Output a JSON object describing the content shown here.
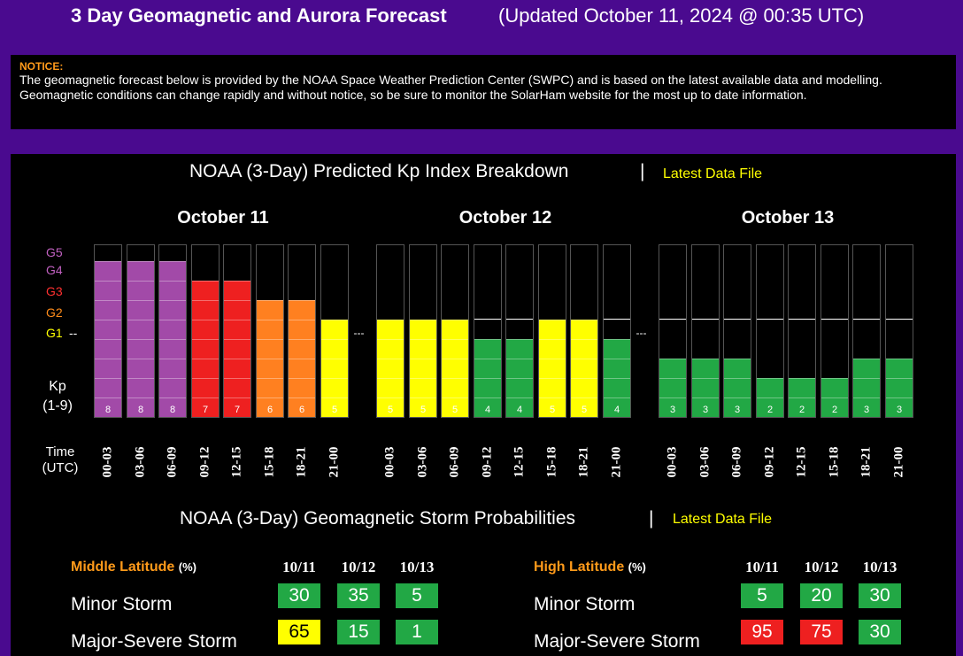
{
  "header": {
    "title": "3 Day Geomagnetic and Aurora Forecast",
    "updated": "(Updated October 11, 2024 @ 00:35 UTC)"
  },
  "notice": {
    "label": "NOTICE:",
    "text": "The geomagnetic forecast below is provided by the NOAA Space Weather Prediction Center (SWPC) and is based on the latest available data and modelling. Geomagnetic conditions can change rapidly and without notice, so be sure to monitor the SolarHam website for the most up to date information."
  },
  "kp_section": {
    "title": "NOAA (3-Day) Predicted Kp Index Breakdown",
    "separator": "|",
    "link": "Latest Data File",
    "g_labels": [
      {
        "text": "G5",
        "color": "#c060c0"
      },
      {
        "text": "G4",
        "color": "#c060c0"
      },
      {
        "text": "G3",
        "color": "#ff3030"
      },
      {
        "text": "G2",
        "color": "#ff8c1a"
      },
      {
        "text": "G1",
        "color": "#ffff00"
      }
    ],
    "g1_tick": "--",
    "kp_label": "Kp",
    "kp_range": "(1-9)",
    "time_label": "Time",
    "time_unit": "(UTC)",
    "day_separator": "---",
    "colors": {
      "8": "#a24aa8",
      "7": "#ee2020",
      "6": "#ff8020",
      "5": "#ffff00",
      "4": "#22a845",
      "3": "#22a845",
      "2": "#22a845"
    },
    "days": [
      {
        "title": "October 11",
        "periods": [
          "00-03",
          "03-06",
          "06-09",
          "09-12",
          "12-15",
          "15-18",
          "18-21",
          "21-00"
        ],
        "kp": [
          8,
          8,
          8,
          7,
          7,
          6,
          6,
          5
        ]
      },
      {
        "title": "October 12",
        "periods": [
          "00-03",
          "03-06",
          "06-09",
          "09-12",
          "12-15",
          "15-18",
          "18-21",
          "21-00"
        ],
        "kp": [
          5,
          5,
          5,
          4,
          4,
          5,
          5,
          4
        ]
      },
      {
        "title": "October 13",
        "periods": [
          "00-03",
          "03-06",
          "06-09",
          "09-12",
          "12-15",
          "15-18",
          "18-21",
          "21-00"
        ],
        "kp": [
          3,
          3,
          3,
          2,
          2,
          2,
          3,
          3
        ]
      }
    ]
  },
  "storm_section": {
    "title": "NOAA (3-Day) Geomagnetic Storm Probabilities",
    "separator": "|",
    "link": "Latest Data File",
    "middle": {
      "label": "Middle Latitude",
      "unit": "(%)",
      "dates": [
        "10/11",
        "10/12",
        "10/13"
      ],
      "rows": [
        {
          "label": "Minor Storm",
          "values": [
            "30",
            "35",
            "5"
          ],
          "colors": [
            "#22a845",
            "#22a845",
            "#22a845"
          ],
          "text_colors": [
            "#fff",
            "#fff",
            "#fff"
          ]
        },
        {
          "label": "Major-Severe Storm",
          "values": [
            "65",
            "15",
            "1"
          ],
          "colors": [
            "#ffff00",
            "#22a845",
            "#22a845"
          ],
          "text_colors": [
            "#000",
            "#fff",
            "#fff"
          ]
        }
      ]
    },
    "high": {
      "label": "High Latitude",
      "unit": "(%)",
      "dates": [
        "10/11",
        "10/12",
        "10/13"
      ],
      "rows": [
        {
          "label": "Minor Storm",
          "values": [
            "5",
            "20",
            "30"
          ],
          "colors": [
            "#22a845",
            "#22a845",
            "#22a845"
          ],
          "text_colors": [
            "#fff",
            "#fff",
            "#fff"
          ]
        },
        {
          "label": "Major-Severe Storm",
          "values": [
            "95",
            "75",
            "30"
          ],
          "colors": [
            "#ee2020",
            "#ee2020",
            "#22a845"
          ],
          "text_colors": [
            "#fff",
            "#fff",
            "#fff"
          ]
        }
      ]
    }
  }
}
